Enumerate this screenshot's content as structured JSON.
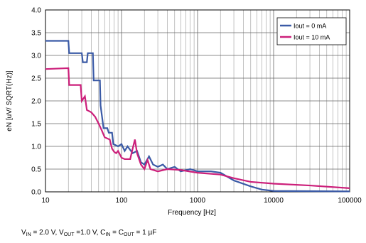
{
  "chart_data": {
    "type": "line",
    "x_label": "Frequency [Hz]",
    "y_label": "eN [uV/ SQRT(Hz)]",
    "xscale": "log",
    "xlim": [
      10,
      100000
    ],
    "xticks": [
      10,
      100,
      1000,
      10000,
      100000
    ],
    "ylim": [
      0,
      4
    ],
    "yticks": [
      {
        "value": 0,
        "label": "0.0"
      },
      {
        "value": 0.5,
        "label": "0.5"
      },
      {
        "value": 1,
        "label": "1.0"
      },
      {
        "value": 1.5,
        "label": "1.5"
      },
      {
        "value": 2,
        "label": "2.0"
      },
      {
        "value": 2.5,
        "label": "2.5"
      },
      {
        "value": 3,
        "label": "3.0"
      },
      {
        "value": 3.5,
        "label": "3.5"
      },
      {
        "value": 4,
        "label": "4.0"
      }
    ],
    "grid": true,
    "legend": "upper right",
    "note_parts": [
      "V",
      "IN",
      " = 2.0 V,  V",
      "OUT",
      " =1.0 V,  C",
      "IN",
      " = C",
      "OUT",
      " = 1 µF"
    ],
    "series": [
      {
        "name": "Iout = 0 mA",
        "color": "#3a5aa6",
        "x": [
          10,
          20,
          20.5,
          30,
          31,
          35,
          36,
          42,
          43,
          52,
          53,
          58,
          65,
          68,
          75,
          78,
          90,
          100,
          110,
          120,
          140,
          160,
          180,
          200,
          230,
          260,
          300,
          350,
          400,
          500,
          600,
          800,
          1000,
          1500,
          2000,
          3000,
          5000,
          7000,
          10000,
          100000
        ],
        "values": [
          3.32,
          3.32,
          3.05,
          3.05,
          2.85,
          2.85,
          3.05,
          3.05,
          2.45,
          2.45,
          1.9,
          1.4,
          1.4,
          1.3,
          1.3,
          1.05,
          1.0,
          1.05,
          0.9,
          1.0,
          0.85,
          0.9,
          0.65,
          0.6,
          0.78,
          0.6,
          0.55,
          0.6,
          0.5,
          0.55,
          0.45,
          0.5,
          0.45,
          0.45,
          0.42,
          0.25,
          0.12,
          0.05,
          0.02,
          0.01
        ]
      },
      {
        "name": "Iout = 10 mA",
        "color": "#cc1f7a",
        "x": [
          10,
          20,
          20.5,
          29,
          30,
          33,
          35,
          40,
          45,
          50,
          55,
          60,
          70,
          75,
          80,
          85,
          90,
          100,
          110,
          130,
          140,
          150,
          160,
          180,
          200,
          220,
          240,
          300,
          400,
          600,
          1000,
          2000,
          3000,
          5000,
          10000,
          30000,
          100000
        ],
        "values": [
          2.7,
          2.72,
          2.35,
          2.35,
          2.0,
          2.1,
          1.8,
          1.75,
          1.65,
          1.5,
          1.35,
          1.2,
          1.15,
          0.95,
          0.88,
          0.85,
          0.9,
          0.75,
          0.72,
          0.72,
          0.95,
          1.15,
          0.85,
          0.6,
          0.5,
          0.7,
          0.5,
          0.45,
          0.5,
          0.48,
          0.42,
          0.38,
          0.3,
          0.22,
          0.18,
          0.14,
          0.08
        ]
      }
    ]
  }
}
